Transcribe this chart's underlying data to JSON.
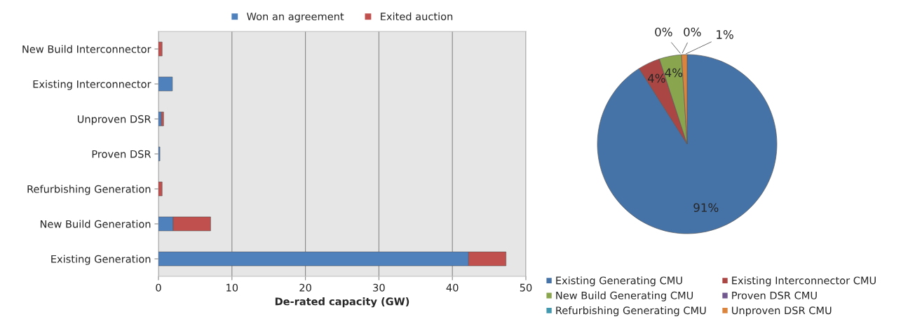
{
  "chart_data": [
    {
      "type": "bar",
      "orientation": "horizontal",
      "stacked": true,
      "xlabel": "De-rated capacity (GW)",
      "categories": [
        "New Build Interconnector",
        "Existing Interconnector",
        "Unproven DSR",
        "Proven DSR",
        "Refurbishing Generation",
        "New Build Generation",
        "Existing Generation"
      ],
      "series": [
        {
          "name": "Won an agreement",
          "color": "#4f81bd",
          "values": [
            0,
            1.9,
            0.4,
            0.2,
            0,
            2.0,
            42.2
          ]
        },
        {
          "name": "Exited auction",
          "color": "#c0504d",
          "values": [
            0.5,
            0,
            0.3,
            0,
            0.5,
            5.1,
            5.1
          ]
        }
      ],
      "xlim": [
        0,
        50
      ],
      "xticks": [
        0,
        10,
        20,
        30,
        40,
        50
      ],
      "grid": "x",
      "legend": "top"
    },
    {
      "type": "pie",
      "categories": [
        "Existing Generating CMU",
        "Existing Interconnector CMU",
        "New Build Generating CMU",
        "Proven DSR CMU",
        "Refurbishing Generating CMU",
        "Unproven DSR CMU"
      ],
      "values": [
        91,
        4,
        4,
        0,
        0,
        1
      ],
      "value_labels": [
        "91%",
        "4%",
        "4%",
        "0%",
        "0%",
        "1%"
      ],
      "colors": [
        "#4572a7",
        "#aa4643",
        "#89a54e",
        "#71588f",
        "#4198af",
        "#db843d"
      ],
      "legend": "bottom"
    }
  ]
}
